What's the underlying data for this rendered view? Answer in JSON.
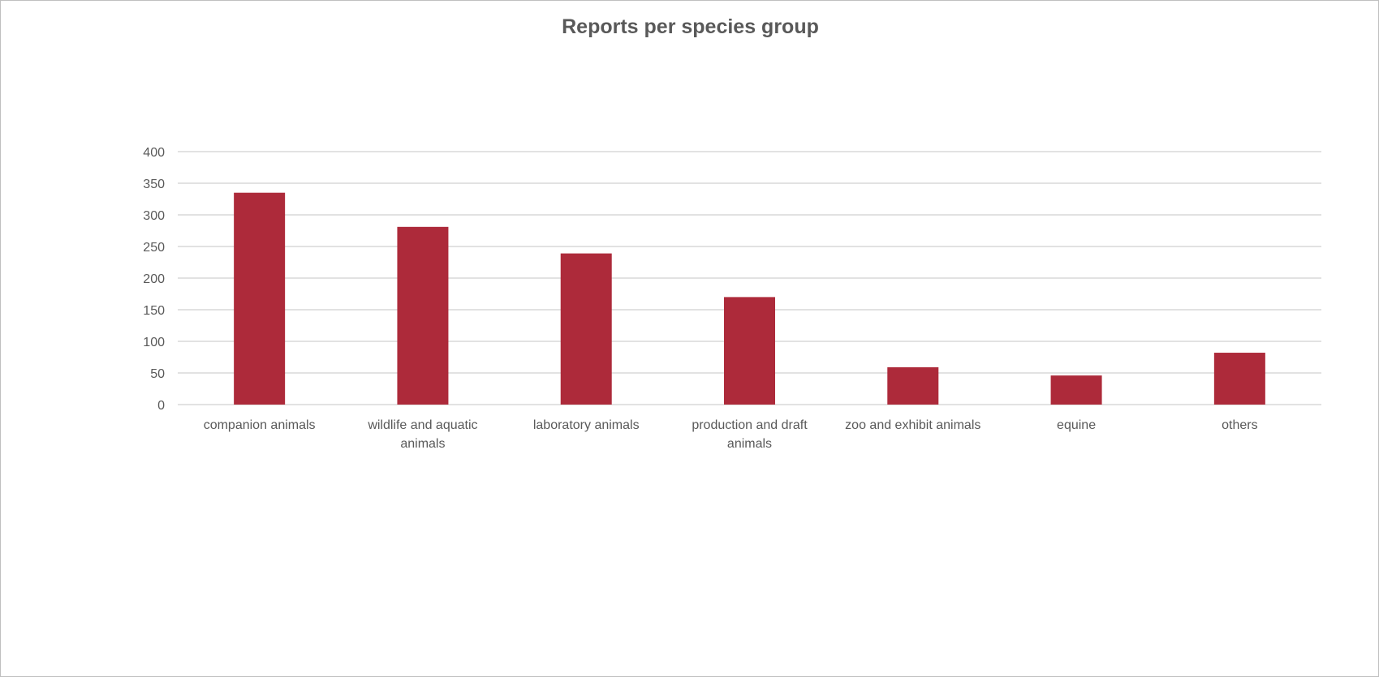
{
  "chart_data": {
    "type": "bar",
    "title": "Reports per species group",
    "xlabel": "",
    "ylabel": "",
    "categories": [
      "companion animals",
      "wildlife and aquatic animals",
      "laboratory animals",
      "production and draft animals",
      "zoo and exhibit animals",
      "equine",
      "others"
    ],
    "category_lines": [
      [
        "companion animals"
      ],
      [
        "wildlife and aquatic",
        "animals"
      ],
      [
        "laboratory animals"
      ],
      [
        "production and draft",
        "animals"
      ],
      [
        "zoo and exhibit animals"
      ],
      [
        "equine"
      ],
      [
        "others"
      ]
    ],
    "values": [
      335,
      281,
      239,
      170,
      59,
      46,
      82
    ],
    "ylim": [
      0,
      400
    ],
    "yticks": [
      0,
      50,
      100,
      150,
      200,
      250,
      300,
      350,
      400
    ],
    "grid": true,
    "legend": "none",
    "bar_color": "#AD2A3A",
    "grid_color": "#d9d9d9",
    "text_color": "#595959"
  }
}
